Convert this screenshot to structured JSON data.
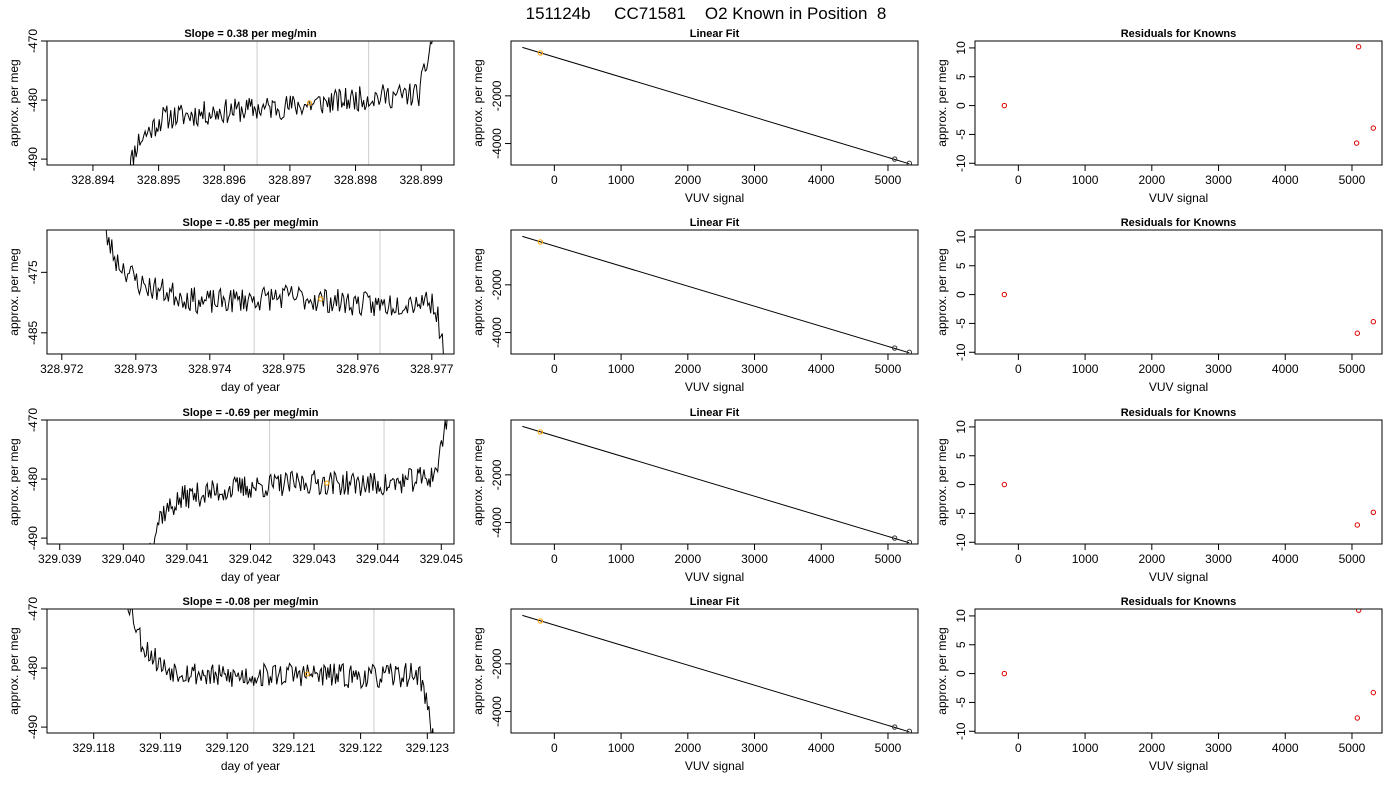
{
  "title": "151124b     CC71581    O2 Known in Position  8",
  "colors": {
    "trace": "#000000",
    "cursor": "#cccccc",
    "known_marker": "#ffa500",
    "residual_marker": "#dd0000",
    "axes": "#000000"
  },
  "chart_data": [
    {
      "type": "line",
      "row": 0,
      "title": "Slope =  0.38  per meg/min",
      "xlabel": "day of year",
      "ylabel": "approx. per meg",
      "xlim": [
        328.8933,
        328.8995
      ],
      "ylim": [
        -491,
        -470
      ],
      "xticks": [
        328.894,
        328.895,
        328.896,
        328.897,
        328.898,
        328.899
      ],
      "xtick_labels": [
        "328.894",
        "328.895",
        "328.896",
        "328.897",
        "328.898",
        "328.899"
      ],
      "yticks": [
        -490,
        -480,
        -470
      ],
      "ytick_labels": [
        "-490",
        "-480",
        "-470"
      ],
      "trace_x_range": [
        328.8945,
        328.8992
      ],
      "trace_seed": 11,
      "trace_shape": [
        [
          0.0,
          -493
        ],
        [
          0.04,
          -487
        ],
        [
          0.12,
          -483
        ],
        [
          0.3,
          -482
        ],
        [
          0.55,
          -481
        ],
        [
          0.8,
          -479.5
        ],
        [
          0.95,
          -479
        ],
        [
          0.97,
          -475
        ],
        [
          1.0,
          -468
        ]
      ],
      "vlines": [
        328.8965,
        328.8982
      ],
      "marker": {
        "x": 328.8973,
        "y": -480.5
      }
    },
    {
      "type": "scatter",
      "row": 0,
      "title": "Linear Fit",
      "xlabel": "VUV signal",
      "ylabel": "approx. per meg",
      "xlim": [
        -650,
        5450
      ],
      "ylim": [
        -4900,
        300
      ],
      "xticks": [
        0,
        1000,
        2000,
        3000,
        4000,
        5000
      ],
      "xtick_labels": [
        "0",
        "1000",
        "2000",
        "3000",
        "4000",
        "5000"
      ],
      "yticks": [
        -4000,
        -2000
      ],
      "ytick_labels": [
        "-4000",
        "-2000"
      ],
      "line": [
        [
          -480,
          32
        ],
        [
          5320,
          -4850
        ]
      ],
      "points": [
        {
          "x": -210,
          "y": -200,
          "color": "#ffa500"
        },
        {
          "x": 5100,
          "y": -4650,
          "color": "#333333"
        },
        {
          "x": 5320,
          "y": -4830,
          "color": "#333333"
        }
      ]
    },
    {
      "type": "scatter",
      "row": 0,
      "title": "Residuals for Knowns",
      "xlabel": "VUV signal",
      "ylabel": "approx. per meg",
      "xlim": [
        -650,
        5450
      ],
      "ylim": [
        -10.3,
        11.2
      ],
      "xticks": [
        0,
        1000,
        2000,
        3000,
        4000,
        5000
      ],
      "xtick_labels": [
        "0",
        "1000",
        "2000",
        "3000",
        "4000",
        "5000"
      ],
      "yticks": [
        -10,
        -5,
        0,
        5,
        10
      ],
      "ytick_labels": [
        "-10",
        "-5",
        "0",
        "5",
        "10"
      ],
      "points": [
        {
          "x": -210,
          "y": 0
        },
        {
          "x": 5100,
          "y": 10.2
        },
        {
          "x": 5070,
          "y": -6.5
        },
        {
          "x": 5320,
          "y": -3.9
        }
      ]
    },
    {
      "type": "line",
      "row": 1,
      "title": "Slope =  -0.85  per meg/min",
      "xlabel": "day of year",
      "ylabel": "approx. per meg",
      "xlim": [
        328.9718,
        328.9773
      ],
      "ylim": [
        -488.5,
        -468
      ],
      "xticks": [
        328.972,
        328.973,
        328.974,
        328.975,
        328.976,
        328.977
      ],
      "xtick_labels": [
        "328.972",
        "328.973",
        "328.974",
        "328.975",
        "328.976",
        "328.977"
      ],
      "yticks": [
        -485,
        -475
      ],
      "ytick_labels": [
        "-485",
        "-475"
      ],
      "trace_x_range": [
        328.9725,
        328.9772
      ],
      "trace_seed": 23,
      "trace_shape": [
        [
          0.0,
          -466
        ],
        [
          0.05,
          -473
        ],
        [
          0.12,
          -477
        ],
        [
          0.3,
          -480
        ],
        [
          0.55,
          -479
        ],
        [
          0.8,
          -480.5
        ],
        [
          0.95,
          -479.5
        ],
        [
          0.97,
          -481
        ],
        [
          1.0,
          -491
        ]
      ],
      "vlines": [
        328.9746,
        328.9763
      ],
      "marker": {
        "x": 328.9755,
        "y": -479.4
      }
    },
    {
      "type": "scatter",
      "row": 1,
      "title": "Linear Fit",
      "xlabel": "VUV signal",
      "ylabel": "approx. per meg",
      "xlim": [
        -650,
        5450
      ],
      "ylim": [
        -4900,
        300
      ],
      "xticks": [
        0,
        1000,
        2000,
        3000,
        4000,
        5000
      ],
      "xtick_labels": [
        "0",
        "1000",
        "2000",
        "3000",
        "4000",
        "5000"
      ],
      "yticks": [
        -4000,
        -2000
      ],
      "ytick_labels": [
        "-4000",
        "-2000"
      ],
      "line": [
        [
          -480,
          32
        ],
        [
          5320,
          -4850
        ]
      ],
      "points": [
        {
          "x": -210,
          "y": -200,
          "color": "#ffa500"
        },
        {
          "x": 5100,
          "y": -4650,
          "color": "#333333"
        },
        {
          "x": 5320,
          "y": -4830,
          "color": "#333333"
        }
      ]
    },
    {
      "type": "scatter",
      "row": 1,
      "title": "Residuals for Knowns",
      "xlabel": "VUV signal",
      "ylabel": "approx. per meg",
      "xlim": [
        -650,
        5450
      ],
      "ylim": [
        -10.3,
        11.2
      ],
      "xticks": [
        0,
        1000,
        2000,
        3000,
        4000,
        5000
      ],
      "xtick_labels": [
        "0",
        "1000",
        "2000",
        "3000",
        "4000",
        "5000"
      ],
      "yticks": [
        -10,
        -5,
        0,
        5,
        10
      ],
      "ytick_labels": [
        "-10",
        "-5",
        "0",
        "5",
        "10"
      ],
      "points": [
        {
          "x": -210,
          "y": 0
        },
        {
          "x": 5080,
          "y": -6.7
        },
        {
          "x": 5320,
          "y": -4.7
        }
      ]
    },
    {
      "type": "line",
      "row": 2,
      "title": "Slope =  -0.69  per meg/min",
      "xlabel": "day of year",
      "ylabel": "approx. per meg",
      "xlim": [
        329.0388,
        329.0452
      ],
      "ylim": [
        -491,
        -470
      ],
      "xticks": [
        329.039,
        329.04,
        329.041,
        329.042,
        329.043,
        329.044,
        329.045
      ],
      "xtick_labels": [
        "329.039",
        "329.040",
        "329.041",
        "329.042",
        "329.043",
        "329.044",
        "329.045"
      ],
      "yticks": [
        -490,
        -480,
        -470
      ],
      "ytick_labels": [
        "-490",
        "-480",
        "-470"
      ],
      "trace_x_range": [
        329.0404,
        329.0451
      ],
      "trace_seed": 37,
      "trace_shape": [
        [
          0.0,
          -492
        ],
        [
          0.04,
          -486
        ],
        [
          0.12,
          -483
        ],
        [
          0.3,
          -481.5
        ],
        [
          0.55,
          -480.5
        ],
        [
          0.8,
          -481
        ],
        [
          0.95,
          -479.5
        ],
        [
          0.97,
          -477
        ],
        [
          1.0,
          -469
        ]
      ],
      "vlines": [
        329.0423,
        329.0441
      ],
      "marker": {
        "x": 329.0432,
        "y": -480.7
      }
    },
    {
      "type": "scatter",
      "row": 2,
      "title": "Linear Fit",
      "xlabel": "VUV signal",
      "ylabel": "approx. per meg",
      "xlim": [
        -650,
        5450
      ],
      "ylim": [
        -4900,
        300
      ],
      "xticks": [
        0,
        1000,
        2000,
        3000,
        4000,
        5000
      ],
      "xtick_labels": [
        "0",
        "1000",
        "2000",
        "3000",
        "4000",
        "5000"
      ],
      "yticks": [
        -4000,
        -2000
      ],
      "ytick_labels": [
        "-4000",
        "-2000"
      ],
      "line": [
        [
          -480,
          32
        ],
        [
          5320,
          -4850
        ]
      ],
      "points": [
        {
          "x": -210,
          "y": -200,
          "color": "#ffa500"
        },
        {
          "x": 5100,
          "y": -4650,
          "color": "#333333"
        },
        {
          "x": 5320,
          "y": -4830,
          "color": "#333333"
        }
      ]
    },
    {
      "type": "scatter",
      "row": 2,
      "title": "Residuals for Knowns",
      "xlabel": "VUV signal",
      "ylabel": "approx. per meg",
      "xlim": [
        -650,
        5450
      ],
      "ylim": [
        -10.3,
        11.2
      ],
      "xticks": [
        0,
        1000,
        2000,
        3000,
        4000,
        5000
      ],
      "xtick_labels": [
        "0",
        "1000",
        "2000",
        "3000",
        "4000",
        "5000"
      ],
      "yticks": [
        -10,
        -5,
        0,
        5,
        10
      ],
      "ytick_labels": [
        "-10",
        "-5",
        "0",
        "5",
        "10"
      ],
      "points": [
        {
          "x": -210,
          "y": 0
        },
        {
          "x": 5080,
          "y": -7.0
        },
        {
          "x": 5320,
          "y": -4.8
        }
      ]
    },
    {
      "type": "line",
      "row": 3,
      "title": "Slope =  -0.08  per meg/min",
      "xlabel": "day of year",
      "ylabel": "approx. per meg",
      "xlim": [
        329.1173,
        329.1234
      ],
      "ylim": [
        -491,
        -470
      ],
      "xticks": [
        329.118,
        329.119,
        329.12,
        329.121,
        329.122,
        329.123
      ],
      "xtick_labels": [
        "329.118",
        "329.119",
        "329.120",
        "329.121",
        "329.122",
        "329.123"
      ],
      "yticks": [
        -490,
        -480,
        -470
      ],
      "ytick_labels": [
        "-490",
        "-480",
        "-470"
      ],
      "trace_x_range": [
        329.1185,
        329.1231
      ],
      "trace_seed": 53,
      "trace_shape": [
        [
          0.0,
          -468
        ],
        [
          0.05,
          -476
        ],
        [
          0.12,
          -480
        ],
        [
          0.3,
          -481.5
        ],
        [
          0.55,
          -481
        ],
        [
          0.8,
          -481.5
        ],
        [
          0.95,
          -481
        ],
        [
          0.97,
          -484
        ],
        [
          1.0,
          -493
        ]
      ],
      "vlines": [
        329.1204,
        329.1222
      ],
      "marker": {
        "x": 329.1212,
        "y": -481
      }
    },
    {
      "type": "scatter",
      "row": 3,
      "title": "Linear Fit",
      "xlabel": "VUV signal",
      "ylabel": "approx. per meg",
      "xlim": [
        -650,
        5450
      ],
      "ylim": [
        -4900,
        300
      ],
      "xticks": [
        0,
        1000,
        2000,
        3000,
        4000,
        5000
      ],
      "xtick_labels": [
        "0",
        "1000",
        "2000",
        "3000",
        "4000",
        "5000"
      ],
      "yticks": [
        -4000,
        -2000
      ],
      "ytick_labels": [
        "-4000",
        "-2000"
      ],
      "line": [
        [
          -480,
          32
        ],
        [
          5320,
          -4850
        ]
      ],
      "points": [
        {
          "x": -210,
          "y": -200,
          "color": "#ffa500"
        },
        {
          "x": 5100,
          "y": -4650,
          "color": "#333333"
        },
        {
          "x": 5320,
          "y": -4830,
          "color": "#333333"
        }
      ]
    },
    {
      "type": "scatter",
      "row": 3,
      "title": "Residuals for Knowns",
      "xlabel": "VUV signal",
      "ylabel": "approx. per meg",
      "xlim": [
        -650,
        5450
      ],
      "ylim": [
        -10.3,
        11.2
      ],
      "xticks": [
        0,
        1000,
        2000,
        3000,
        4000,
        5000
      ],
      "xtick_labels": [
        "0",
        "1000",
        "2000",
        "3000",
        "4000",
        "5000"
      ],
      "yticks": [
        -10,
        -5,
        0,
        5,
        10
      ],
      "ytick_labels": [
        "-10",
        "-5",
        "0",
        "5",
        "10"
      ],
      "points": [
        {
          "x": -210,
          "y": 0
        },
        {
          "x": 5100,
          "y": 11.0
        },
        {
          "x": 5080,
          "y": -7.7
        },
        {
          "x": 5320,
          "y": -3.3
        }
      ]
    }
  ]
}
